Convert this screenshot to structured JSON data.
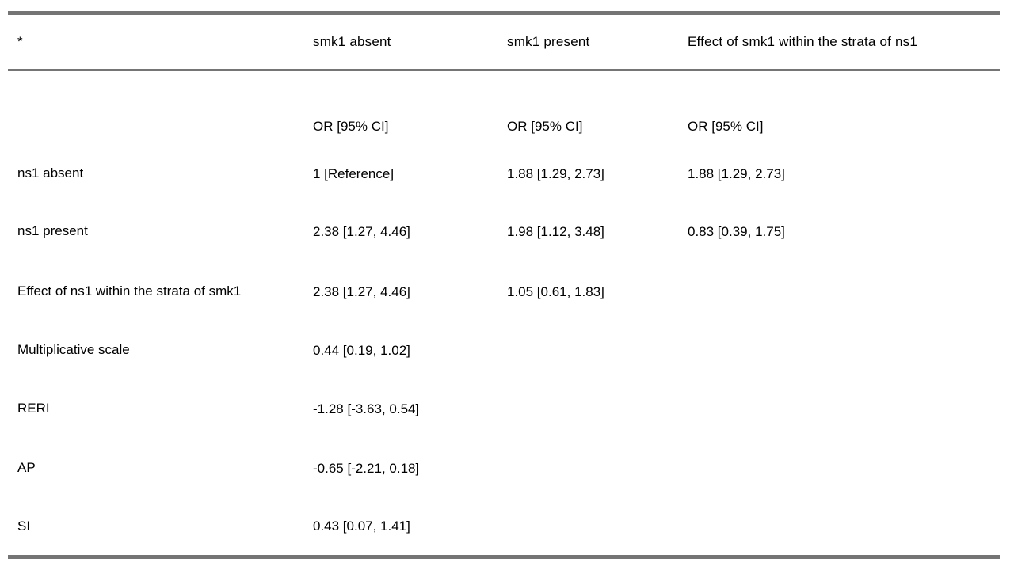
{
  "page": {
    "background": "#ffffff",
    "text_color": "#000000"
  },
  "table": {
    "rule_color": "#757575",
    "columns": [
      "*",
      "smk1 absent",
      "smk1 present",
      "Effect of smk1 within the strata of ns1"
    ],
    "subheader": [
      "",
      "OR [95% CI]",
      "OR [95% CI]",
      "OR [95% CI]"
    ],
    "rows": [
      {
        "label": "ns1 absent",
        "values": [
          "1 [Reference]",
          "1.88 [1.29, 2.73]",
          "1.88 [1.29, 2.73]"
        ]
      },
      {
        "label": "ns1 present",
        "values": [
          "2.38 [1.27, 4.46]",
          "1.98 [1.12, 3.48]",
          "0.83 [0.39, 1.75]"
        ]
      },
      {
        "label": "Effect of ns1 within the strata of smk1",
        "values": [
          "2.38 [1.27, 4.46]",
          "1.05 [0.61, 1.83]",
          ""
        ]
      },
      {
        "label": "Multiplicative scale",
        "values": [
          "0.44 [0.19, 1.02]",
          "",
          ""
        ]
      },
      {
        "label": "RERI",
        "values": [
          "-1.28 [-3.63, 0.54]",
          "",
          ""
        ]
      },
      {
        "label": "AP",
        "values": [
          "-0.65 [-2.21, 0.18]",
          "",
          ""
        ]
      },
      {
        "label": "SI",
        "values": [
          "0.43 [0.07, 1.41]",
          "",
          ""
        ]
      }
    ]
  }
}
